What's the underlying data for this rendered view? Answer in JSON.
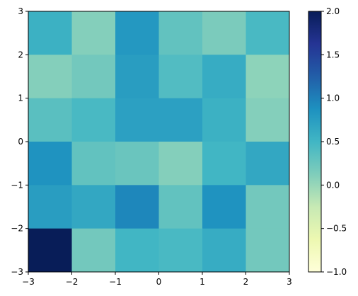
{
  "chart_data": {
    "type": "heatmap",
    "title": "",
    "xlabel": "",
    "ylabel": "",
    "xlim": [
      -3,
      3
    ],
    "ylim": [
      -3,
      3
    ],
    "x_ticks": [
      "−3",
      "−2",
      "−1",
      "0",
      "1",
      "2",
      "3"
    ],
    "y_ticks": [
      "−3",
      "−2",
      "−1",
      "0",
      "1",
      "2",
      "3"
    ],
    "grid": false,
    "colormap": "YlGnBu",
    "colorbar": {
      "range": [
        -1.0,
        2.0
      ],
      "ticks": [
        "−1.0",
        "−0.5",
        "0.0",
        "0.5",
        "1.0",
        "1.5",
        "2.0"
      ],
      "tick_values": [
        -1.0,
        -0.5,
        0.0,
        0.5,
        1.0,
        1.5,
        2.0
      ]
    },
    "x_edges": [
      -3,
      -2,
      -1,
      0,
      1,
      2,
      3
    ],
    "y_edges": [
      -3,
      -2,
      -1,
      0,
      1,
      2,
      3
    ],
    "values_top_to_bottom": [
      [
        0.55,
        0.1,
        0.8,
        0.3,
        0.15,
        0.45
      ],
      [
        0.1,
        0.2,
        0.75,
        0.4,
        0.6,
        0.05
      ],
      [
        0.35,
        0.45,
        0.72,
        0.72,
        0.55,
        0.1
      ],
      [
        0.85,
        0.3,
        0.25,
        0.1,
        0.5,
        0.65
      ],
      [
        0.75,
        0.65,
        0.95,
        0.3,
        0.85,
        0.2
      ],
      [
        2.0,
        0.2,
        0.5,
        0.45,
        0.6,
        0.2
      ]
    ]
  }
}
